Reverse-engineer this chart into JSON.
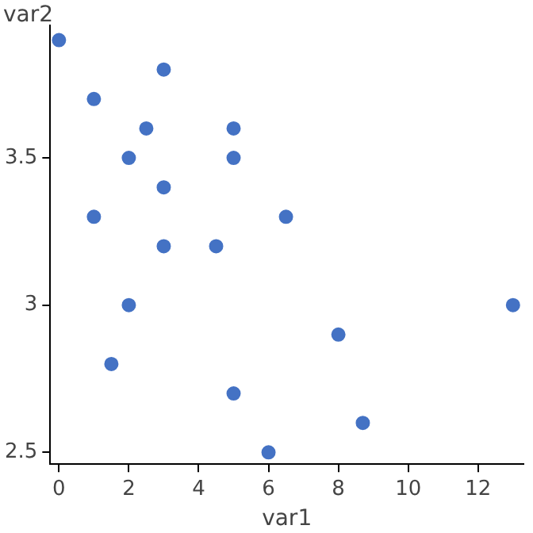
{
  "chart_data": {
    "type": "scatter",
    "xlabel": "var1",
    "ylabel": "var2",
    "x": [
      0,
      3,
      1,
      2.5,
      5,
      2,
      5,
      3,
      1,
      6.5,
      3,
      4.5,
      2,
      13,
      8,
      1.5,
      5,
      8.7,
      6
    ],
    "values": [
      3.9,
      3.8,
      3.7,
      3.6,
      3.6,
      3.5,
      3.5,
      3.4,
      3.3,
      3.3,
      3.2,
      3.2,
      3,
      3,
      2.9,
      2.8,
      2.7,
      2.6,
      2.5
    ],
    "color": "#4472c4",
    "xlim": [
      -0.25,
      13.3
    ],
    "ylim": [
      2.46,
      3.95
    ],
    "xticks": [
      0,
      2,
      4,
      6,
      8,
      10,
      12
    ],
    "yticks": [
      2.5,
      3,
      3.5
    ],
    "grid": false,
    "legend": false,
    "marker": "circle"
  }
}
